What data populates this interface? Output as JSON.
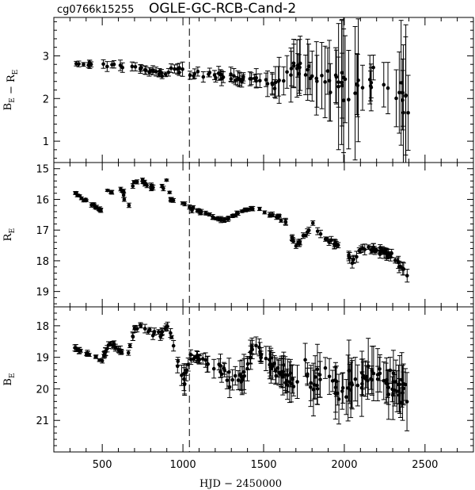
{
  "chart_data": {
    "type": "scatter",
    "header": {
      "field_id": "cg0766k15255",
      "title": "OGLE-GC-RCB-Cand-2"
    },
    "xlabel": "HJD − 2450000",
    "xlim": [
      200,
      2800
    ],
    "x_ticks": [
      500,
      1000,
      1500,
      2000,
      2500
    ],
    "vertical_marker_x": 1040,
    "error_bars": true,
    "panels": [
      {
        "id": "color",
        "ylabel": "B_E − R_E",
        "ylim": [
          0.5,
          3.9
        ],
        "inverted": false,
        "y_ticks": [
          1,
          2,
          3
        ],
        "seg": [
          [
            330,
            2.8
          ],
          [
            540,
            2.8
          ],
          [
            880,
            2.6
          ],
          [
            960,
            2.65
          ],
          [
            1010,
            2.6
          ],
          [
            1270,
            2.5
          ],
          [
            1440,
            2.4
          ],
          [
            1560,
            2.4
          ],
          [
            1620,
            2.5
          ],
          [
            1680,
            2.7
          ],
          [
            1760,
            2.6
          ],
          [
            1880,
            2.6
          ],
          [
            1980,
            2.4
          ],
          [
            2060,
            2.3
          ],
          [
            2160,
            2.5
          ],
          [
            2200,
            2.6
          ],
          [
            2330,
            2.0
          ],
          [
            2400,
            1.8
          ]
        ],
        "noise": [
          0.05,
          0.05,
          0.08,
          0.1,
          0.1,
          0.1,
          0.12,
          0.25,
          0.3,
          0.35,
          0.35,
          0.4,
          0.45,
          0.5,
          0.3,
          0.3,
          0.55,
          0.6
        ],
        "err": [
          0.05,
          0.1,
          0.08,
          0.12,
          0.12,
          0.12,
          0.15,
          0.35,
          0.45,
          0.5,
          0.55,
          0.8,
          1.2,
          1.5,
          0.4,
          0.5,
          0.9,
          1.4
        ],
        "count": 130
      },
      {
        "id": "red",
        "ylabel": "R_E",
        "ylim": [
          14.8,
          19.5
        ],
        "inverted": true,
        "y_ticks": [
          15,
          16,
          17,
          18,
          19
        ],
        "seg": [
          [
            330,
            15.8
          ],
          [
            500,
            16.4
          ],
          [
            530,
            15.7
          ],
          [
            580,
            15.9
          ],
          [
            620,
            15.6
          ],
          [
            660,
            16.3
          ],
          [
            700,
            15.4
          ],
          [
            740,
            15.4
          ],
          [
            860,
            15.8
          ],
          [
            900,
            15.4
          ],
          [
            930,
            16.0
          ],
          [
            1250,
            16.7
          ],
          [
            1400,
            16.3
          ],
          [
            1450,
            16.3
          ],
          [
            1590,
            16.6
          ],
          [
            1640,
            16.8
          ],
          [
            1700,
            17.5
          ],
          [
            1770,
            17.1
          ],
          [
            1800,
            16.8
          ],
          [
            1850,
            17.2
          ],
          [
            1960,
            17.5
          ],
          [
            2000,
            17.8
          ],
          [
            2060,
            18.0
          ],
          [
            2100,
            17.6
          ],
          [
            2180,
            17.6
          ],
          [
            2320,
            17.9
          ],
          [
            2400,
            18.6
          ]
        ],
        "noise": [
          0.05,
          0.05,
          0.1,
          0.15,
          0.1,
          0.15,
          0.1,
          0.1,
          0.15,
          0.1,
          0.1,
          0.05,
          0.05,
          0.05,
          0.1,
          0.1,
          0.1,
          0.1,
          0.1,
          0.1,
          0.1,
          0.15,
          0.15,
          0.1,
          0.1,
          0.15,
          0.15
        ],
        "err": [
          0.05,
          0.06,
          0.06,
          0.06,
          0.06,
          0.06,
          0.06,
          0.06,
          0.06,
          0.06,
          0.06,
          0.06,
          0.06,
          0.06,
          0.06,
          0.08,
          0.08,
          0.1,
          0.1,
          0.1,
          0.12,
          0.15,
          0.2,
          0.15,
          0.12,
          0.15,
          0.2
        ],
        "count": 170
      },
      {
        "id": "blue",
        "ylabel": "B_E",
        "ylim": [
          17.4,
          22.0
        ],
        "inverted": true,
        "y_ticks": [
          18,
          19,
          20,
          21
        ],
        "seg": [
          [
            330,
            18.7
          ],
          [
            500,
            19.1
          ],
          [
            540,
            18.5
          ],
          [
            580,
            18.7
          ],
          [
            660,
            18.9
          ],
          [
            700,
            18.1
          ],
          [
            740,
            18.0
          ],
          [
            860,
            18.3
          ],
          [
            900,
            18.0
          ],
          [
            930,
            18.3
          ],
          [
            980,
            19.5
          ],
          [
            1010,
            19.8
          ],
          [
            1040,
            19.0
          ],
          [
            1090,
            19.0
          ],
          [
            1250,
            19.5
          ],
          [
            1330,
            19.7
          ],
          [
            1390,
            19.5
          ],
          [
            1440,
            18.6
          ],
          [
            1600,
            19.5
          ],
          [
            1650,
            19.7
          ],
          [
            1700,
            19.8
          ],
          [
            1760,
            19.1
          ],
          [
            1800,
            19.8
          ],
          [
            1880,
            19.7
          ],
          [
            1980,
            19.9
          ],
          [
            2050,
            20.0
          ],
          [
            2120,
            19.7
          ],
          [
            2200,
            19.6
          ],
          [
            2320,
            20.0
          ],
          [
            2400,
            20.1
          ]
        ],
        "noise": [
          0.05,
          0.05,
          0.1,
          0.1,
          0.05,
          0.1,
          0.1,
          0.15,
          0.1,
          0.1,
          0.2,
          0.3,
          0.1,
          0.1,
          0.3,
          0.3,
          0.25,
          0.15,
          0.3,
          0.35,
          0.35,
          0.3,
          0.4,
          0.4,
          0.45,
          0.5,
          0.4,
          0.4,
          0.5,
          0.5
        ],
        "err": [
          0.08,
          0.08,
          0.1,
          0.1,
          0.1,
          0.1,
          0.1,
          0.1,
          0.1,
          0.1,
          0.2,
          0.3,
          0.15,
          0.15,
          0.3,
          0.4,
          0.4,
          0.2,
          0.4,
          0.5,
          0.5,
          0.4,
          0.6,
          0.6,
          0.7,
          0.9,
          0.7,
          0.6,
          0.7,
          0.8
        ],
        "count": 220
      }
    ]
  }
}
